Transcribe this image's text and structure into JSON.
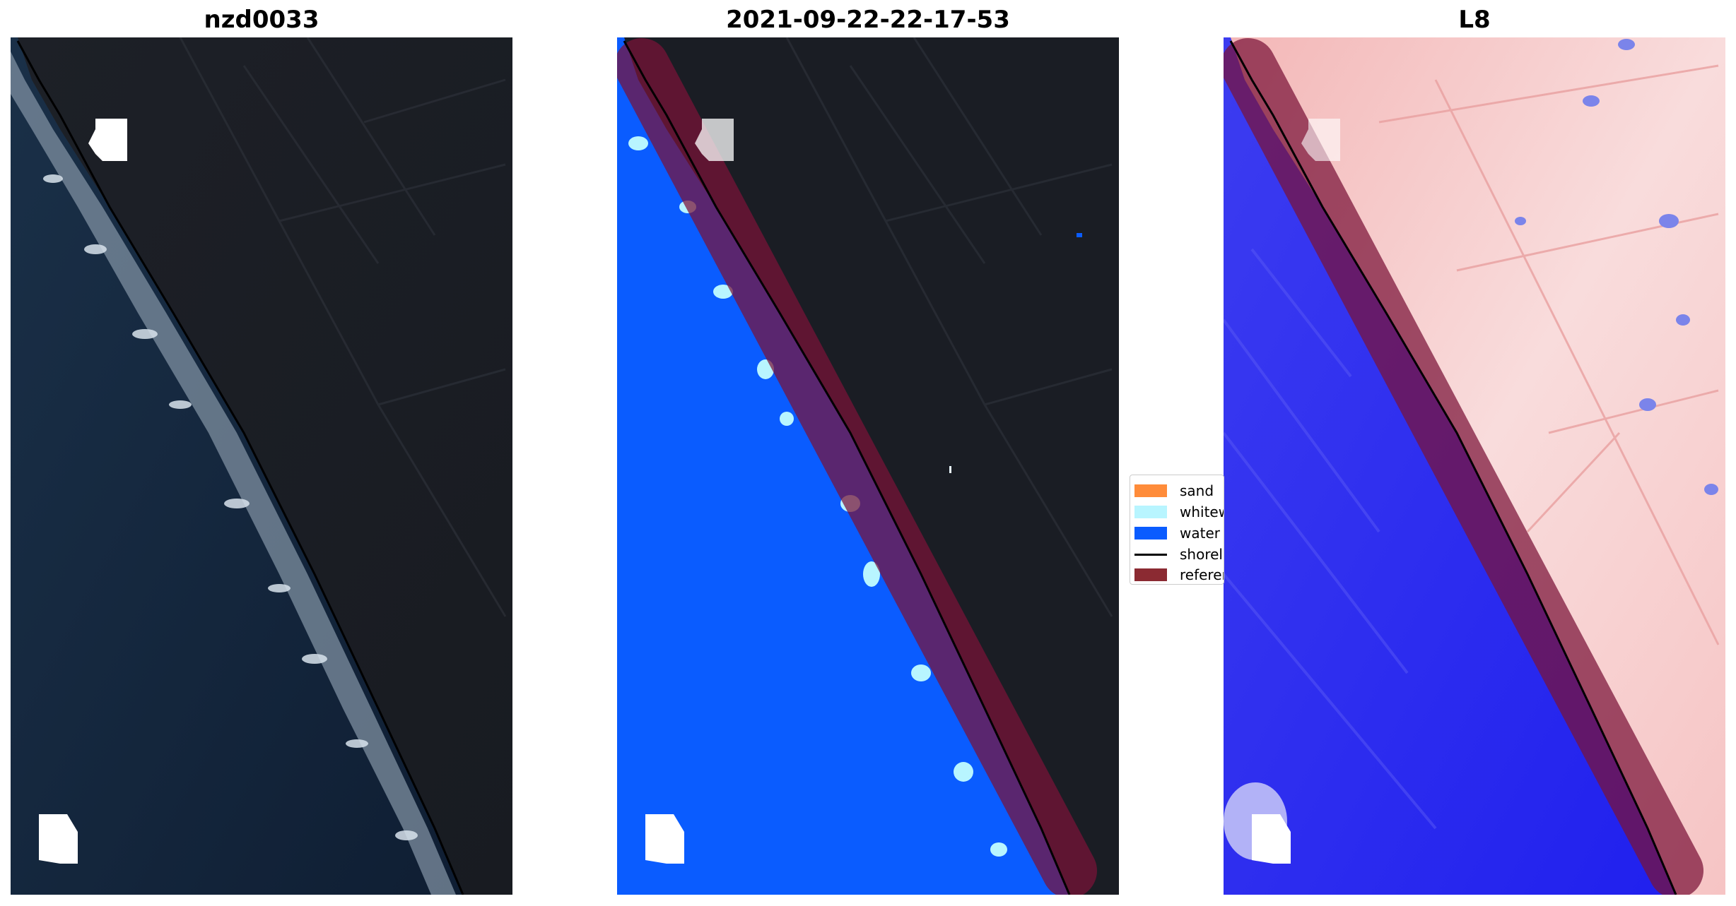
{
  "panels": [
    {
      "title": "nzd0033",
      "kind": "rgb-image"
    },
    {
      "title": "2021-09-22-22-17-53",
      "kind": "classification"
    },
    {
      "title": "L8",
      "kind": "index-image"
    }
  ],
  "legend": {
    "items": [
      {
        "label": "sand",
        "color": "#ff8c3a"
      },
      {
        "label": "whitewater",
        "color": "#b8f5ff"
      },
      {
        "label": "water",
        "color": "#0a5cff"
      },
      {
        "label": "shoreline",
        "color": "#000000"
      },
      {
        "label": "reference",
        "color": "#8b2a32"
      }
    ]
  },
  "colors": {
    "land_dark": "#1a1d24",
    "ocean_dark": "#14253c",
    "water_class": "#0a5cff",
    "land_index": "#f6c8c8",
    "water_index": "#2e2ef0",
    "reference_buffer": "#7a1238"
  }
}
